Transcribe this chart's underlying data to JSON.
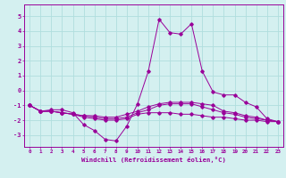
{
  "x": [
    0,
    1,
    2,
    3,
    4,
    5,
    6,
    7,
    8,
    9,
    10,
    11,
    12,
    13,
    14,
    15,
    16,
    17,
    18,
    19,
    20,
    21,
    22,
    23
  ],
  "line1": [
    -1.0,
    -1.4,
    -1.3,
    -1.3,
    -1.5,
    -2.3,
    -2.7,
    -3.3,
    -3.4,
    -2.4,
    -0.9,
    1.3,
    4.8,
    3.9,
    3.8,
    4.5,
    1.3,
    -0.1,
    -0.3,
    -0.3,
    -0.8,
    -1.1,
    -1.9,
    -2.1
  ],
  "line2": [
    -1.0,
    -1.4,
    -1.4,
    -1.5,
    -1.6,
    -1.7,
    -1.7,
    -1.8,
    -1.8,
    -1.6,
    -1.4,
    -1.1,
    -0.9,
    -0.8,
    -0.8,
    -0.8,
    -0.9,
    -1.0,
    -1.4,
    -1.5,
    -1.7,
    -1.8,
    -2.0,
    -2.1
  ],
  "line3": [
    -1.0,
    -1.4,
    -1.4,
    -1.5,
    -1.6,
    -1.7,
    -1.8,
    -1.9,
    -1.9,
    -1.8,
    -1.5,
    -1.3,
    -1.0,
    -0.9,
    -0.9,
    -0.9,
    -1.1,
    -1.3,
    -1.5,
    -1.6,
    -1.8,
    -1.9,
    -2.0,
    -2.1
  ],
  "line4": [
    -1.0,
    -1.4,
    -1.4,
    -1.5,
    -1.6,
    -1.8,
    -1.9,
    -2.0,
    -2.0,
    -1.9,
    -1.6,
    -1.5,
    -1.5,
    -1.5,
    -1.6,
    -1.6,
    -1.7,
    -1.8,
    -1.8,
    -1.9,
    -2.0,
    -2.0,
    -2.1,
    -2.1
  ],
  "color": "#990099",
  "bg_color": "#d4f0f0",
  "grid_color": "#b0dede",
  "xlabel": "Windchill (Refroidissement éolien,°C)",
  "yticks": [
    -3,
    -2,
    -1,
    0,
    1,
    2,
    3,
    4,
    5
  ],
  "ylim": [
    -3.8,
    5.8
  ],
  "xlim": [
    -0.5,
    23.5
  ]
}
